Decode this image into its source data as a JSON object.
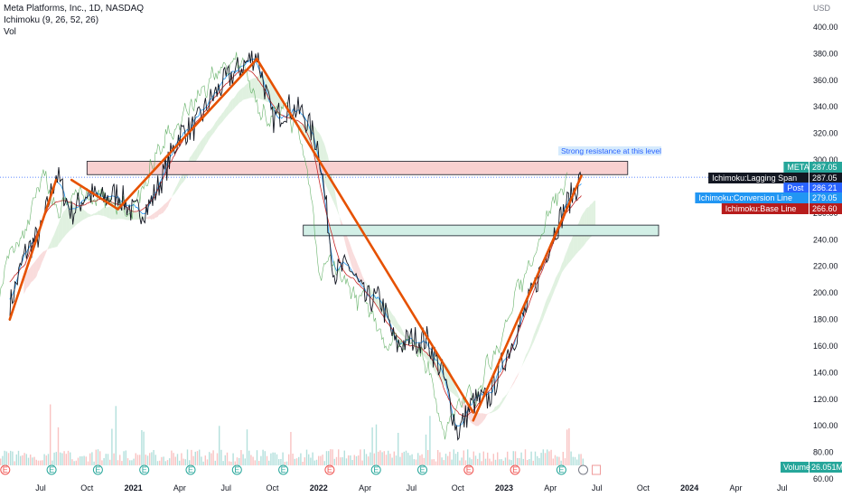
{
  "header": {
    "title": "Meta Platforms, Inc., 1D, NASDAQ",
    "indicator_ichimoku": "Ichimoku (9, 26, 52, 26)",
    "indicator_vol": "Vol"
  },
  "price_axis": {
    "currency": "USD",
    "ticks": [
      "400.00",
      "380.00",
      "360.00",
      "340.00",
      "320.00",
      "300.00",
      "280.00",
      "260.00",
      "240.00",
      "220.00",
      "200.00",
      "180.00",
      "160.00",
      "140.00",
      "120.00",
      "100.00",
      "80.00",
      "60.00"
    ]
  },
  "time_axis": {
    "labels": [
      "Jul",
      "Oct",
      "2021",
      "Apr",
      "Jul",
      "Oct",
      "2022",
      "Apr",
      "Jul",
      "Oct",
      "2023",
      "Apr",
      "Jul",
      "Oct",
      "2024",
      "Apr",
      "Jul"
    ]
  },
  "tags": {
    "meta": {
      "label": "META",
      "value": "287.05",
      "color": "#26a69a"
    },
    "lagging": {
      "label": "Ichimoku:Lagging Span",
      "value": "287.05",
      "color": "#131722"
    },
    "post": {
      "label": "Post",
      "value": "286.21",
      "color": "#2962ff"
    },
    "conversion": {
      "label": "Ichimoku:Conversion Line",
      "value": "279.05",
      "color": "#2196f3"
    },
    "base": {
      "label": "Ichimoku:Base Line",
      "value": "266.60",
      "color": "#b71c1c"
    },
    "volume": {
      "label": "Volume",
      "value": "26.051M",
      "color": "#26a69a"
    }
  },
  "annotation": {
    "text": "Strong resistance at this level"
  },
  "chart_data": {
    "type": "line",
    "symbol": "META",
    "interval": "1D",
    "exchange": "NASDAQ",
    "ylim": [
      60,
      400
    ],
    "x_range": [
      "2020-06",
      "2024-08"
    ],
    "close_path": [
      {
        "x": "2020-05",
        "y": 190
      },
      {
        "x": "2020-06",
        "y": 230
      },
      {
        "x": "2020-07",
        "y": 245
      },
      {
        "x": "2020-08",
        "y": 290
      },
      {
        "x": "2020-09",
        "y": 260
      },
      {
        "x": "2020-10",
        "y": 275
      },
      {
        "x": "2020-11",
        "y": 270
      },
      {
        "x": "2020-12",
        "y": 275
      },
      {
        "x": "2021-01",
        "y": 260
      },
      {
        "x": "2021-02",
        "y": 265
      },
      {
        "x": "2021-03",
        "y": 290
      },
      {
        "x": "2021-04",
        "y": 320
      },
      {
        "x": "2021-05",
        "y": 325
      },
      {
        "x": "2021-06",
        "y": 345
      },
      {
        "x": "2021-07",
        "y": 360
      },
      {
        "x": "2021-08",
        "y": 370
      },
      {
        "x": "2021-09",
        "y": 380
      },
      {
        "x": "2021-10",
        "y": 330
      },
      {
        "x": "2021-11",
        "y": 340
      },
      {
        "x": "2021-12",
        "y": 335
      },
      {
        "x": "2022-01",
        "y": 310
      },
      {
        "x": "2022-02",
        "y": 215
      },
      {
        "x": "2022-03",
        "y": 220
      },
      {
        "x": "2022-04",
        "y": 195
      },
      {
        "x": "2022-05",
        "y": 195
      },
      {
        "x": "2022-06",
        "y": 160
      },
      {
        "x": "2022-07",
        "y": 165
      },
      {
        "x": "2022-08",
        "y": 165
      },
      {
        "x": "2022-09",
        "y": 140
      },
      {
        "x": "2022-10",
        "y": 95
      },
      {
        "x": "2022-11",
        "y": 118
      },
      {
        "x": "2022-12",
        "y": 120
      },
      {
        "x": "2023-01",
        "y": 150
      },
      {
        "x": "2023-02",
        "y": 175
      },
      {
        "x": "2023-03",
        "y": 205
      },
      {
        "x": "2023-04",
        "y": 240
      },
      {
        "x": "2023-05",
        "y": 265
      },
      {
        "x": "2023-06",
        "y": 287
      }
    ],
    "trend_lines": [
      {
        "from": {
          "x": "2020-05",
          "y": 180
        },
        "to": {
          "x": "2020-08",
          "y": 285
        }
      },
      {
        "from": {
          "x": "2020-09",
          "y": 285
        },
        "to": {
          "x": "2020-12",
          "y": 263
        }
      },
      {
        "from": {
          "x": "2020-12",
          "y": 263
        },
        "to": {
          "x": "2021-09",
          "y": 376
        }
      },
      {
        "from": {
          "x": "2021-09",
          "y": 376
        },
        "to": {
          "x": "2022-11",
          "y": 110
        }
      },
      {
        "from": {
          "x": "2022-11",
          "y": 104
        },
        "to": {
          "x": "2023-06",
          "y": 288
        }
      }
    ],
    "zones": [
      {
        "from_x": "2020-10",
        "to_x": "2023-09",
        "y_top": 299,
        "y_bottom": 289,
        "color": "#f8d0d0"
      },
      {
        "from_x": "2021-12",
        "to_x": "2023-11",
        "y_top": 251,
        "y_bottom": 243,
        "color": "#d2efe6"
      }
    ],
    "price_lines": [
      287.05
    ]
  }
}
